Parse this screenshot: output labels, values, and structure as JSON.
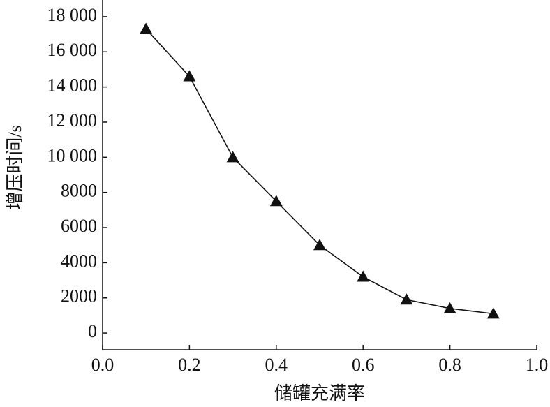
{
  "chart_data": {
    "type": "line",
    "x_label": "储罐充满率",
    "y_label": "增压时间/s",
    "x": [
      0.1,
      0.2,
      0.3,
      0.4,
      0.5,
      0.6,
      0.7,
      0.8,
      0.9
    ],
    "series": [
      {
        "color": "#111111",
        "marker": "triangle",
        "values": [
          17300,
          14600,
          10000,
          7500,
          5000,
          3200,
          1900,
          1400,
          1100
        ]
      }
    ],
    "xlim": [
      0,
      1
    ],
    "xticks": [
      {
        "value": 0,
        "label": "0.0"
      },
      0.2,
      0.4,
      0.6,
      0.8,
      {
        "value": 1,
        "label": "1.0"
      }
    ],
    "ylim": [
      -950,
      18950
    ],
    "yticks": [
      0,
      2000,
      4000,
      6000,
      8000,
      {
        "value": 10000,
        "label": "10 000"
      },
      {
        "value": 12000,
        "label": "12 000"
      },
      {
        "value": 14000,
        "label": "14 000"
      },
      {
        "value": 16000,
        "label": "16 000"
      },
      {
        "value": 18000,
        "label": "18 000"
      }
    ],
    "grid": false
  }
}
